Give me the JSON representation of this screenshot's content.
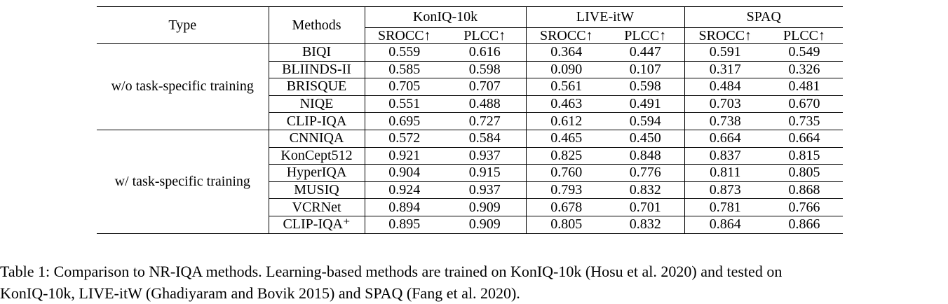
{
  "table": {
    "headers": {
      "type": "Type",
      "methods": "Methods",
      "datasets": [
        "KonIQ-10k",
        "LIVE-itW",
        "SPAQ"
      ],
      "metrics": [
        "SROCC↑",
        "PLCC↑",
        "SROCC↑",
        "PLCC↑",
        "SROCC↑",
        "PLCC↑"
      ]
    },
    "groups": [
      {
        "label": "w/o task-specific training",
        "rows": [
          {
            "method": "BIQI",
            "values": [
              "0.559",
              "0.616",
              "0.364",
              "0.447",
              "0.591",
              "0.549"
            ]
          },
          {
            "method": "BLIINDS-II",
            "values": [
              "0.585",
              "0.598",
              "0.090",
              "0.107",
              "0.317",
              "0.326"
            ]
          },
          {
            "method": "BRISQUE",
            "values": [
              "0.705",
              "0.707",
              "0.561",
              "0.598",
              "0.484",
              "0.481"
            ]
          },
          {
            "method": "NIQE",
            "values": [
              "0.551",
              "0.488",
              "0.463",
              "0.491",
              "0.703",
              "0.670"
            ]
          },
          {
            "method": "CLIP-IQA",
            "values": [
              "0.695",
              "0.727",
              "0.612",
              "0.594",
              "0.738",
              "0.735"
            ]
          }
        ]
      },
      {
        "label": "w/ task-specific training",
        "rows": [
          {
            "method": "CNNIQA",
            "values": [
              "0.572",
              "0.584",
              "0.465",
              "0.450",
              "0.664",
              "0.664"
            ]
          },
          {
            "method": "KonCept512",
            "values": [
              "0.921",
              "0.937",
              "0.825",
              "0.848",
              "0.837",
              "0.815"
            ]
          },
          {
            "method": "HyperIQA",
            "values": [
              "0.904",
              "0.915",
              "0.760",
              "0.776",
              "0.811",
              "0.805"
            ]
          },
          {
            "method": "MUSIQ",
            "values": [
              "0.924",
              "0.937",
              "0.793",
              "0.832",
              "0.873",
              "0.868"
            ]
          },
          {
            "method": "VCRNet",
            "values": [
              "0.894",
              "0.909",
              "0.678",
              "0.701",
              "0.781",
              "0.766"
            ]
          },
          {
            "method": "CLIP-IQA⁺",
            "values": [
              "0.895",
              "0.909",
              "0.805",
              "0.832",
              "0.864",
              "0.866"
            ]
          }
        ]
      }
    ]
  },
  "caption": {
    "line1": "Table 1: Comparison to NR-IQA methods. Learning-based methods are trained on KonIQ-10k (Hosu et al. 2020) and tested on",
    "line2": "KonIQ-10k, LIVE-itW (Ghadiyaram and Bovik 2015) and SPAQ (Fang et al. 2020)."
  }
}
